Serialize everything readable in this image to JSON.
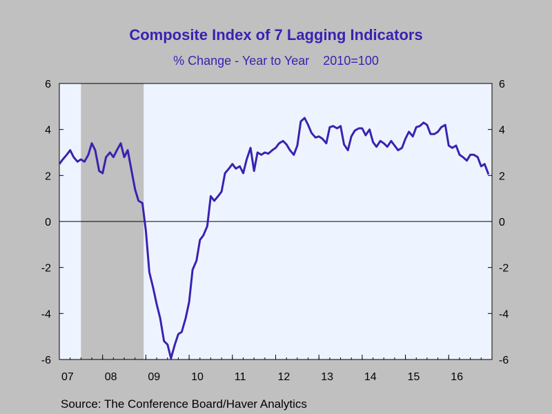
{
  "chart_data": {
    "type": "line",
    "title": "Composite Index of 7 Lagging Indicators",
    "subtitle": "% Change - Year to Year    2010=100",
    "xlabel": "",
    "ylabel": "",
    "ylim": [
      -6,
      6
    ],
    "yticks": [
      -6,
      -4,
      -2,
      0,
      2,
      4,
      6
    ],
    "xticks": [
      "07",
      "08",
      "09",
      "10",
      "11",
      "12",
      "13",
      "14",
      "15",
      "16"
    ],
    "xlim": [
      2007.0,
      2017.0
    ],
    "grid": false,
    "zero_line": true,
    "shaded_regions": [
      [
        2007.5,
        2008.95
      ]
    ],
    "colors": {
      "line": "#3a22b0",
      "plot_bg": "#eef4ff",
      "recession": "#c0c0c0",
      "title": "#3a22b0"
    },
    "series": [
      {
        "x": [
          2007.0,
          2007.08,
          2007.17,
          2007.25,
          2007.33,
          2007.42,
          2007.5,
          2007.58,
          2007.67,
          2007.75,
          2007.83,
          2007.92,
          2008.0,
          2008.08,
          2008.17,
          2008.25,
          2008.33,
          2008.42,
          2008.5,
          2008.58,
          2008.67,
          2008.75,
          2008.83,
          2008.92,
          2009.0,
          2009.08,
          2009.17,
          2009.25,
          2009.33,
          2009.42,
          2009.5,
          2009.58,
          2009.67,
          2009.75,
          2009.83,
          2009.92,
          2010.0,
          2010.08,
          2010.17,
          2010.25,
          2010.33,
          2010.42,
          2010.5,
          2010.58,
          2010.67,
          2010.75,
          2010.83,
          2010.92,
          2011.0,
          2011.08,
          2011.17,
          2011.25,
          2011.33,
          2011.42,
          2011.5,
          2011.58,
          2011.67,
          2011.75,
          2011.83,
          2011.92,
          2012.0,
          2012.08,
          2012.17,
          2012.25,
          2012.33,
          2012.42,
          2012.5,
          2012.58,
          2012.67,
          2012.75,
          2012.83,
          2012.92,
          2013.0,
          2013.08,
          2013.17,
          2013.25,
          2013.33,
          2013.42,
          2013.5,
          2013.58,
          2013.67,
          2013.75,
          2013.83,
          2013.92,
          2014.0,
          2014.08,
          2014.17,
          2014.25,
          2014.33,
          2014.42,
          2014.5,
          2014.58,
          2014.67,
          2014.75,
          2014.83,
          2014.92,
          2015.0,
          2015.08,
          2015.17,
          2015.25,
          2015.33,
          2015.42,
          2015.5,
          2015.58,
          2015.67,
          2015.75,
          2015.83,
          2015.92,
          2016.0,
          2016.08,
          2016.17,
          2016.25,
          2016.33,
          2016.42,
          2016.5,
          2016.58,
          2016.67,
          2016.75,
          2016.83,
          2016.92
        ],
        "y": [
          2.5,
          2.7,
          2.9,
          3.1,
          2.8,
          2.6,
          2.7,
          2.6,
          2.9,
          3.4,
          3.1,
          2.2,
          2.1,
          2.8,
          3.0,
          2.8,
          3.1,
          3.4,
          2.8,
          3.1,
          2.2,
          1.4,
          0.9,
          0.8,
          -0.4,
          -2.2,
          -2.9,
          -3.6,
          -4.2,
          -5.2,
          -5.35,
          -5.95,
          -5.35,
          -4.9,
          -4.8,
          -4.2,
          -3.5,
          -2.1,
          -1.7,
          -0.8,
          -0.6,
          -0.2,
          1.1,
          0.9,
          1.1,
          1.3,
          2.1,
          2.3,
          2.5,
          2.3,
          2.4,
          2.1,
          2.7,
          3.2,
          2.2,
          3.0,
          2.9,
          3.0,
          2.95,
          3.1,
          3.2,
          3.4,
          3.5,
          3.35,
          3.1,
          2.9,
          3.3,
          4.35,
          4.5,
          4.2,
          3.85,
          3.65,
          3.7,
          3.6,
          3.4,
          4.1,
          4.15,
          4.05,
          4.15,
          3.35,
          3.1,
          3.7,
          3.95,
          4.05,
          4.05,
          3.75,
          4.0,
          3.45,
          3.25,
          3.5,
          3.4,
          3.25,
          3.5,
          3.3,
          3.1,
          3.2,
          3.6,
          3.9,
          3.7,
          4.1,
          4.15,
          4.3,
          4.2,
          3.8,
          3.8,
          3.9,
          4.1,
          4.2,
          3.3,
          3.2,
          3.3,
          2.9,
          2.8,
          2.65,
          2.9,
          2.9,
          2.8,
          2.4,
          2.5,
          2.05
        ]
      }
    ]
  },
  "footer": {
    "source": "Source:  The Conference Board/Haver Analytics"
  }
}
